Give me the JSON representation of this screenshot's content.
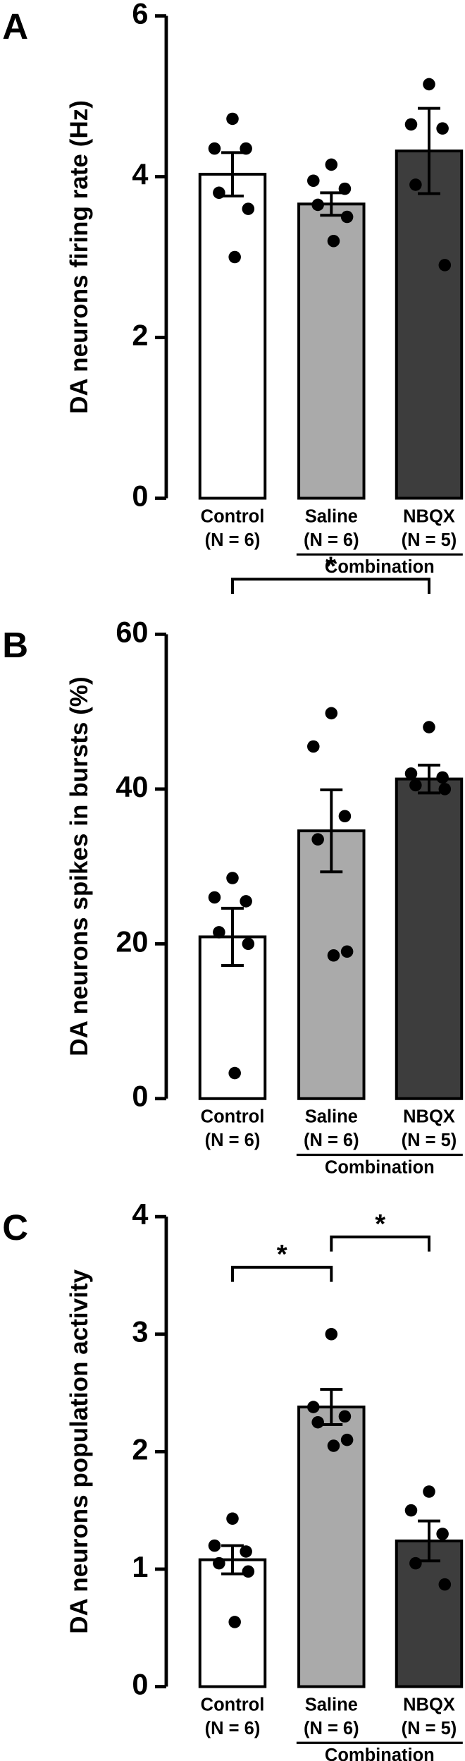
{
  "chart_data": [
    {
      "type": "bar",
      "panel": "A",
      "ylabel": "DA neurons firing rate (Hz)",
      "categories": [
        "Control",
        "Saline",
        "NBQX"
      ],
      "n_labels": [
        "(N = 6)",
        "(N = 6)",
        "(N = 5)"
      ],
      "group_label": "Combination",
      "colors": [
        "#ffffff",
        "#aaaaaa",
        "#3d3d3d"
      ],
      "values": [
        4.03,
        3.66,
        4.32
      ],
      "errors": [
        0.27,
        0.14,
        0.53
      ],
      "points": [
        [
          4.72,
          4.35,
          4.35,
          3.8,
          3.6,
          3.0
        ],
        [
          4.15,
          3.95,
          3.85,
          3.65,
          3.5,
          3.2
        ],
        [
          5.15,
          4.65,
          4.6,
          3.9,
          2.9
        ]
      ],
      "ylim": [
        0,
        6
      ],
      "yticks": [
        0,
        2,
        4,
        6
      ],
      "significance": []
    },
    {
      "type": "bar",
      "panel": "B",
      "ylabel": "DA neurons spikes in bursts (%)",
      "categories": [
        "Control",
        "Saline",
        "NBQX"
      ],
      "n_labels": [
        "(N = 6)",
        "(N = 6)",
        "(N = 5)"
      ],
      "group_label": "Combination",
      "colors": [
        "#ffffff",
        "#aaaaaa",
        "#3d3d3d"
      ],
      "values": [
        20.9,
        34.6,
        41.3
      ],
      "errors": [
        3.7,
        5.3,
        1.8
      ],
      "points": [
        [
          28.5,
          26,
          25.5,
          21.5,
          20,
          3.3
        ],
        [
          49.8,
          45.5,
          36.5,
          33.5,
          19,
          18.5
        ],
        [
          48,
          42,
          41.5,
          40.5,
          40
        ]
      ],
      "ylim": [
        0,
        60
      ],
      "yticks": [
        0,
        20,
        40,
        60
      ],
      "significance": [
        {
          "from": 0,
          "to": 2,
          "label": "*"
        }
      ]
    },
    {
      "type": "bar",
      "panel": "C",
      "ylabel": "DA neurons population activity",
      "categories": [
        "Control",
        "Saline",
        "NBQX"
      ],
      "n_labels": [
        "(N = 6)",
        "(N = 6)",
        "(N = 5)"
      ],
      "group_label": "Combination",
      "colors": [
        "#ffffff",
        "#aaaaaa",
        "#3d3d3d"
      ],
      "values": [
        1.08,
        2.38,
        1.24
      ],
      "errors": [
        0.12,
        0.15,
        0.17
      ],
      "points": [
        [
          1.43,
          1.2,
          1.15,
          1.05,
          0.98,
          0.55
        ],
        [
          3.0,
          2.38,
          2.3,
          2.25,
          2.1,
          2.05
        ],
        [
          1.66,
          1.5,
          1.3,
          1.05,
          0.87
        ]
      ],
      "ylim": [
        0,
        4
      ],
      "yticks": [
        0,
        1,
        2,
        3,
        4
      ],
      "significance": [
        {
          "from": 0,
          "to": 1,
          "label": "*"
        },
        {
          "from": 1,
          "to": 2,
          "label": "*"
        }
      ]
    }
  ]
}
